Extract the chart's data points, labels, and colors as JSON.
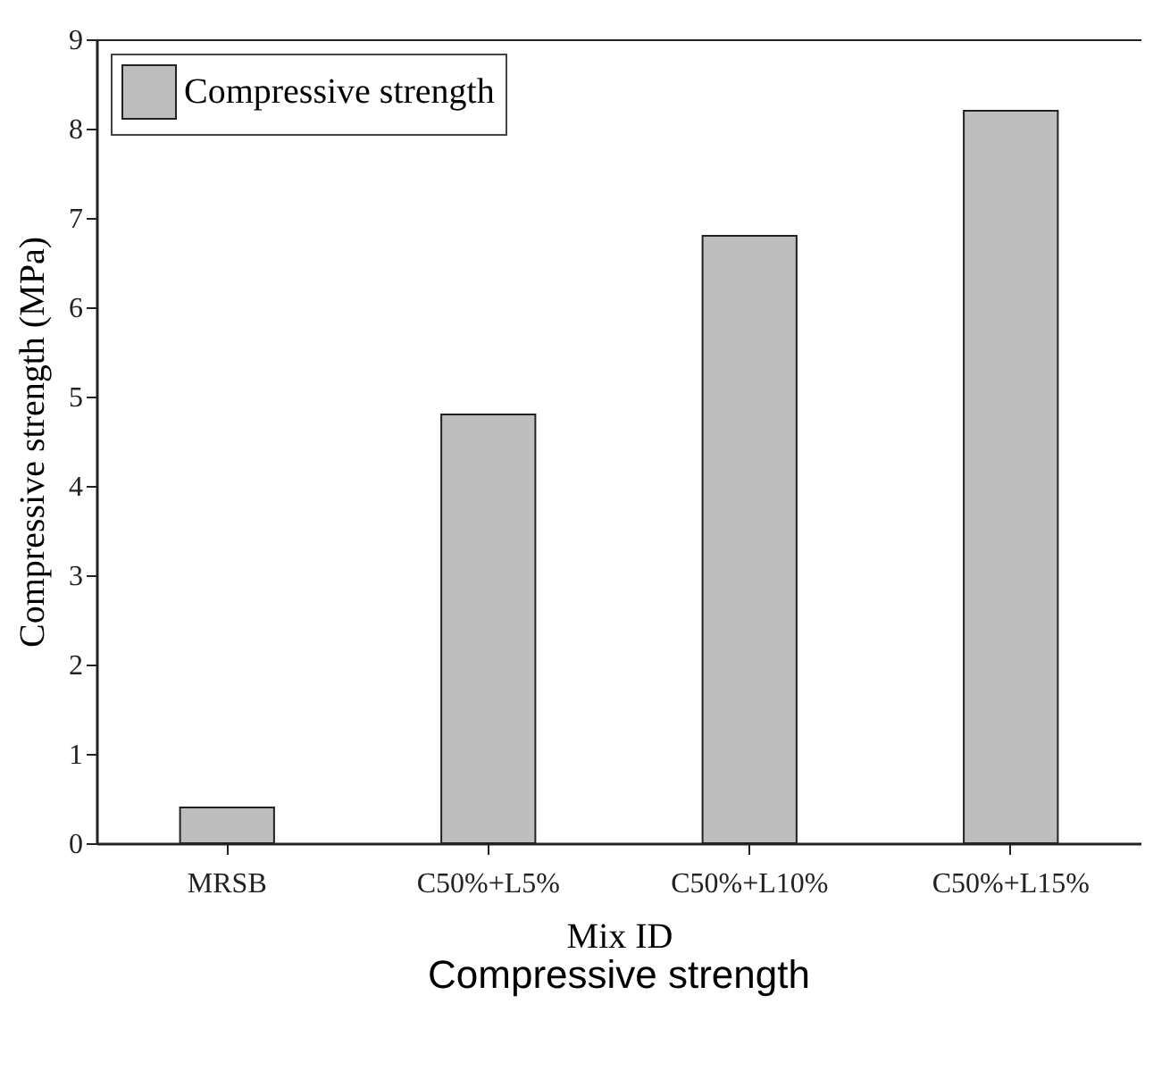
{
  "chart_data": {
    "type": "bar",
    "title": "Compressive strength",
    "xlabel": "Mix ID",
    "ylabel": "Compressive strength (MPa)",
    "categories": [
      "MRSB",
      "C50%+L5%",
      "C50%+L10%",
      "C50%+L15%"
    ],
    "series": [
      {
        "name": "Compressive strength",
        "color": "#bebebe",
        "values": [
          0.4,
          4.8,
          6.8,
          8.2
        ]
      }
    ],
    "ylim": [
      0,
      9
    ],
    "yticks": [
      0,
      1,
      2,
      3,
      4,
      5,
      6,
      7,
      8,
      9
    ],
    "grid": false,
    "legend": "top left"
  }
}
